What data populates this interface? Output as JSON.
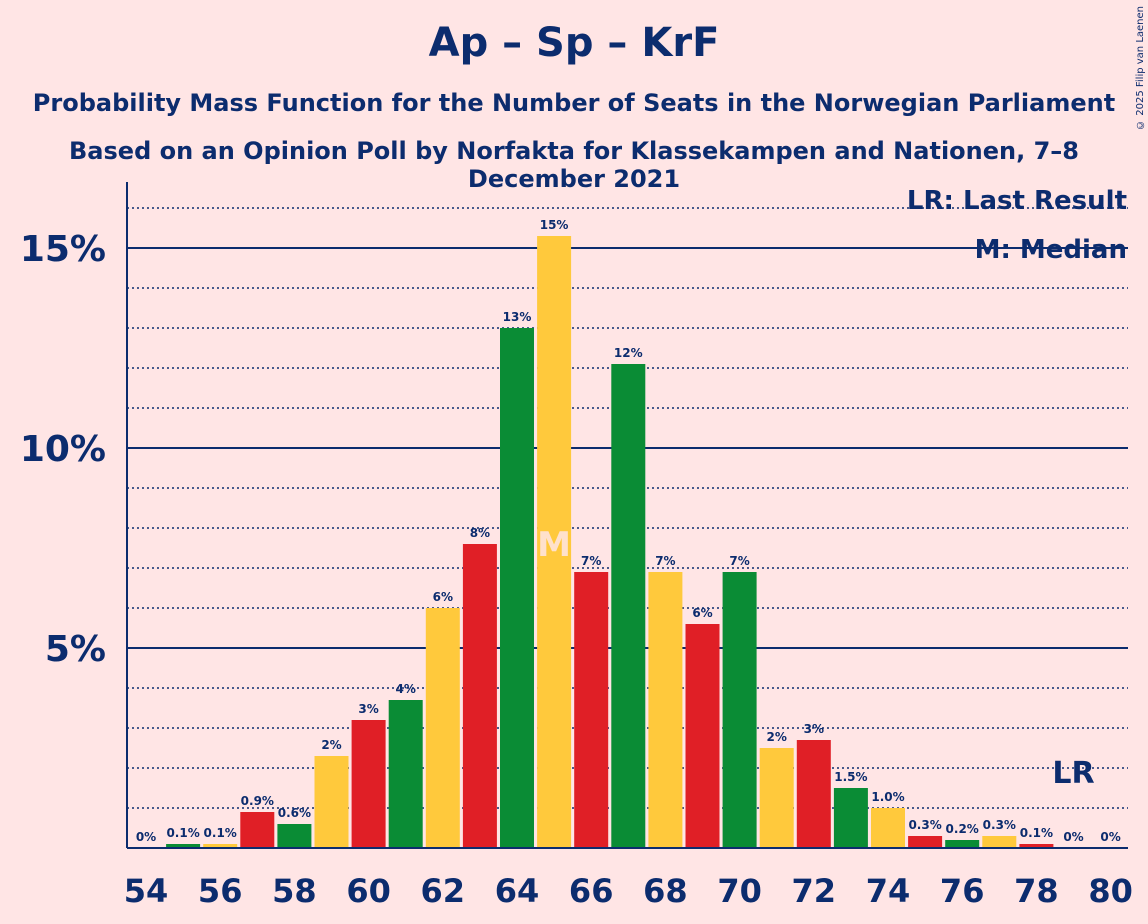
{
  "header": {
    "title": "Ap – Sp – KrF",
    "subtitle": "Probability Mass Function for the Number of Seats in the Norwegian Parliament",
    "subtitle2": "Based on an Opinion Poll by Norfakta for Klassekampen and Nationen, 7–8 December 2021",
    "copyright": "© 2025 Filip van Laenen"
  },
  "chart_data": {
    "type": "bar",
    "x": [
      54,
      55,
      56,
      57,
      58,
      59,
      60,
      61,
      62,
      63,
      64,
      65,
      66,
      67,
      68,
      69,
      70,
      71,
      72,
      73,
      74,
      75,
      76,
      77,
      78,
      79,
      80
    ],
    "values": [
      0,
      0.1,
      0.1,
      0.9,
      0.6,
      2.3,
      3.2,
      3.7,
      6.0,
      7.6,
      13.0,
      15.3,
      6.9,
      12.1,
      6.9,
      5.6,
      6.9,
      2.5,
      2.7,
      1.5,
      1.0,
      0.3,
      0.2,
      0.3,
      0.1,
      0,
      0
    ],
    "labels": [
      "0%",
      "0.1%",
      "0.1%",
      "0.9%",
      "0.6%",
      "2%",
      "3%",
      "4%",
      "6%",
      "8%",
      "13%",
      "15%",
      "7%",
      "12%",
      "7%",
      "6%",
      "7%",
      "2%",
      "3%",
      "1.5%",
      "1.0%",
      "0.3%",
      "0.2%",
      "0.3%",
      "0.1%",
      "0%",
      "0%"
    ],
    "colors": [
      "#E01F26",
      "#0A8C35",
      "#FFC93C"
    ],
    "xticks": [
      54,
      56,
      58,
      60,
      62,
      64,
      66,
      68,
      70,
      72,
      74,
      76,
      78,
      80
    ],
    "yticks": [
      {
        "value": 5,
        "label": "5%"
      },
      {
        "value": 10,
        "label": "10%"
      },
      {
        "value": 15,
        "label": "15%"
      }
    ],
    "ylim": [
      0,
      16.5
    ],
    "median": 65,
    "median_marker": "M",
    "last_result": 79,
    "last_result_marker": "LR",
    "legend": [
      "LR: Last Result",
      "M: Median"
    ],
    "legend_position": "top-right",
    "grid": true
  }
}
